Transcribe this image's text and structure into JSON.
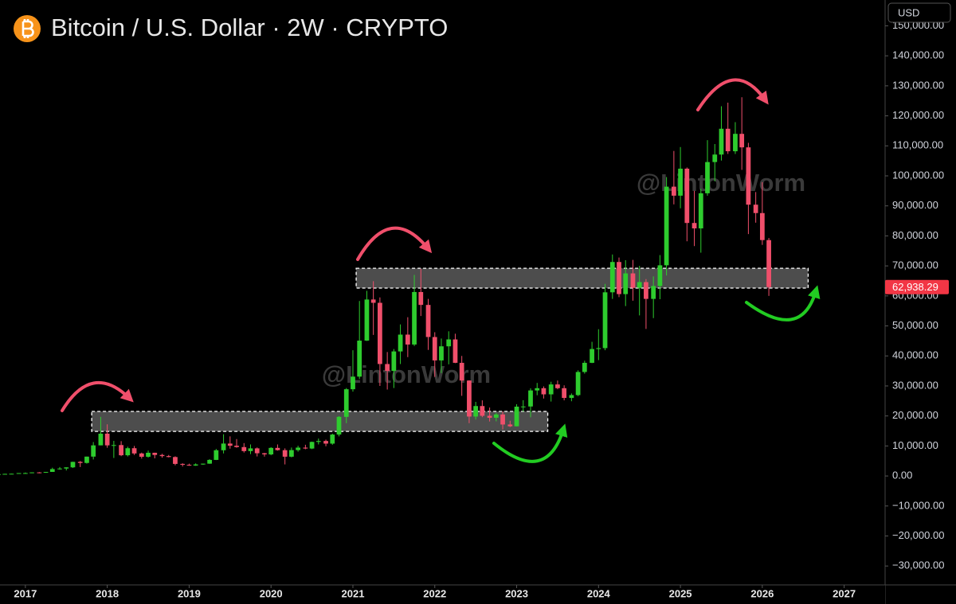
{
  "chart_data": {
    "type": "candlestick",
    "title": "Bitcoin / U.S. Dollar · 2W · CRYPTO",
    "currency": "USD",
    "up_color": "#2ecc2e",
    "down_color": "#f04f6b",
    "x": [
      2016.67,
      2016.75,
      2016.83,
      2016.92,
      2017.0,
      2017.08,
      2017.17,
      2017.25,
      2017.33,
      2017.42,
      2017.5,
      2017.58,
      2017.67,
      2017.75,
      2017.83,
      2017.92,
      2018.0,
      2018.08,
      2018.17,
      2018.25,
      2018.33,
      2018.42,
      2018.5,
      2018.58,
      2018.67,
      2018.75,
      2018.83,
      2018.92,
      2019.0,
      2019.08,
      2019.17,
      2019.25,
      2019.33,
      2019.42,
      2019.5,
      2019.58,
      2019.67,
      2019.75,
      2019.83,
      2019.92,
      2020.0,
      2020.08,
      2020.17,
      2020.25,
      2020.33,
      2020.42,
      2020.5,
      2020.58,
      2020.67,
      2020.75,
      2020.83,
      2020.92,
      2021.0,
      2021.08,
      2021.17,
      2021.25,
      2021.33,
      2021.42,
      2021.5,
      2021.58,
      2021.67,
      2021.75,
      2021.83,
      2021.92,
      2022.0,
      2022.08,
      2022.17,
      2022.25,
      2022.33,
      2022.42,
      2022.5,
      2022.58,
      2022.67,
      2022.75,
      2022.83,
      2022.92,
      2023.0,
      2023.08,
      2023.17,
      2023.25,
      2023.33,
      2023.42,
      2023.5,
      2023.58,
      2023.67,
      2023.75,
      2023.83,
      2023.92,
      2024.0,
      2024.08,
      2024.17,
      2024.25,
      2024.33,
      2024.42,
      2024.5,
      2024.58,
      2024.67,
      2024.75,
      2024.83,
      2024.92,
      2025.0,
      2025.08,
      2025.17,
      2025.25,
      2025.33,
      2025.42,
      2025.5,
      2025.58,
      2025.67,
      2025.75,
      2025.83,
      2025.92,
      2026.0,
      2026.08
    ],
    "open": [
      575,
      608,
      700,
      745,
      960,
      965,
      1190,
      1080,
      1350,
      2300,
      2480,
      2870,
      4700,
      4340,
      6450,
      10200,
      14100,
      10200,
      10300,
      6900,
      9250,
      7500,
      6400,
      7730,
      7000,
      6620,
      6310,
      4020,
      3740,
      3460,
      3850,
      4100,
      5350,
      8570,
      10800,
      10080,
      9630,
      8290,
      9200,
      7570,
      7190,
      9350,
      8600,
      6420,
      8620,
      9450,
      9140,
      11350,
      11660,
      10780,
      13800,
      19700,
      28900,
      33100,
      45100,
      58800,
      57700,
      37300,
      35000,
      41500,
      47100,
      43800,
      61300,
      57000,
      46300,
      38500,
      43200,
      45500,
      37700,
      31800,
      19800,
      23300,
      20050,
      19400,
      20500,
      17150,
      16550,
      23100,
      23150,
      28500,
      29250,
      27200,
      30500,
      29250,
      26000,
      26950,
      34650,
      37700,
      42300,
      42600,
      61200,
      71300,
      60600,
      67500,
      62700,
      64600,
      59000,
      63300,
      70200,
      96400,
      93400,
      102400,
      84300,
      82500,
      94200,
      104600,
      107100,
      115700,
      108200,
      114000,
      109500,
      90400,
      87600,
      78600
    ],
    "high": [
      610,
      740,
      755,
      970,
      1150,
      1200,
      1290,
      1350,
      2760,
      2980,
      2900,
      4750,
      4980,
      6450,
      11300,
      19700,
      17200,
      11700,
      11600,
      9750,
      10000,
      7780,
      8450,
      7760,
      7400,
      7000,
      6550,
      4230,
      4100,
      4200,
      4130,
      5600,
      9000,
      13900,
      13200,
      12300,
      10950,
      10500,
      9500,
      7700,
      9600,
      10500,
      9200,
      9470,
      10070,
      10400,
      11450,
      12470,
      12100,
      14100,
      19900,
      29300,
      41900,
      58300,
      61700,
      64900,
      59500,
      41300,
      42300,
      50500,
      52900,
      67000,
      69000,
      59000,
      47900,
      45800,
      48200,
      47400,
      40000,
      31900,
      24700,
      25200,
      22800,
      21000,
      21500,
      18400,
      23900,
      25250,
      29200,
      31000,
      29850,
      31400,
      31800,
      30200,
      27500,
      35200,
      38400,
      44700,
      48900,
      64000,
      73800,
      72800,
      71900,
      72000,
      70000,
      65600,
      66500,
      73600,
      99600,
      108300,
      109600,
      102800,
      95000,
      95700,
      111900,
      110600,
      123200,
      124400,
      117900,
      126200,
      111000,
      94600,
      97900,
      79300
    ],
    "low": [
      570,
      605,
      690,
      740,
      780,
      920,
      890,
      1060,
      1350,
      2100,
      1830,
      2670,
      2970,
      4110,
      5500,
      10200,
      9400,
      6000,
      6600,
      6500,
      7000,
      5780,
      6100,
      5880,
      6100,
      6200,
      3550,
      3150,
      3400,
      3380,
      3700,
      4050,
      5300,
      7500,
      9100,
      9400,
      7800,
      7300,
      6500,
      6450,
      6900,
      8450,
      3850,
      6200,
      8100,
      8900,
      8950,
      10500,
      9900,
      10400,
      13200,
      17600,
      28100,
      32300,
      45000,
      47000,
      30000,
      28800,
      29300,
      37300,
      39600,
      43300,
      53300,
      42000,
      33000,
      34300,
      37200,
      37600,
      26700,
      17600,
      18800,
      19600,
      18150,
      18200,
      15500,
      16300,
      16500,
      21400,
      19550,
      26900,
      25800,
      24800,
      28900,
      25200,
      24900,
      26600,
      34100,
      37600,
      38600,
      41900,
      59000,
      59600,
      56600,
      58400,
      53500,
      49000,
      52600,
      58900,
      66800,
      90500,
      89200,
      78200,
      76600,
      74400,
      93400,
      98200,
      105100,
      107300,
      107300,
      102000,
      80600,
      84400,
      77000,
      60000
    ],
    "close": [
      608,
      700,
      745,
      960,
      965,
      1190,
      1080,
      1350,
      2300,
      2480,
      2870,
      4700,
      4340,
      6450,
      10200,
      14100,
      10200,
      10300,
      6900,
      9250,
      7500,
      6400,
      7730,
      7000,
      6620,
      6310,
      4020,
      3740,
      3460,
      3850,
      4100,
      5350,
      8570,
      10800,
      10080,
      9630,
      8290,
      9200,
      7570,
      7190,
      9350,
      8600,
      6420,
      8620,
      9450,
      9140,
      11350,
      11660,
      10780,
      13800,
      19700,
      28900,
      33100,
      45100,
      58800,
      57700,
      37300,
      35000,
      41500,
      47100,
      43800,
      61300,
      57000,
      46300,
      38500,
      43200,
      45500,
      37700,
      31800,
      19800,
      23300,
      20050,
      19400,
      20500,
      17150,
      16550,
      23100,
      23150,
      28500,
      29250,
      27200,
      30500,
      29250,
      26000,
      26950,
      34650,
      37700,
      42300,
      42600,
      61200,
      71300,
      60600,
      67500,
      62700,
      64600,
      59000,
      63300,
      70200,
      96400,
      93400,
      102400,
      84300,
      82500,
      94200,
      104600,
      107100,
      115700,
      108200,
      114000,
      109500,
      90400,
      87600,
      78600,
      62938.29
    ],
    "xlim": [
      2016.69,
      2027.49
    ],
    "xticks": [
      2017,
      2018,
      2019,
      2020,
      2021,
      2022,
      2023,
      2024,
      2025,
      2026,
      2027
    ],
    "ylim": [
      -36300,
      158600
    ],
    "yticks": [
      {
        "value": -30000,
        "label": "−30,000.00"
      },
      {
        "value": -20000,
        "label": "−20,000.00"
      },
      {
        "value": -10000,
        "label": "−10,000.00"
      },
      {
        "value": 0,
        "label": "0.00"
      },
      {
        "value": 10000,
        "label": "10,000.00"
      },
      {
        "value": 20000,
        "label": "20,000.00"
      },
      {
        "value": 30000,
        "label": "30,000.00"
      },
      {
        "value": 40000,
        "label": "40,000.00"
      },
      {
        "value": 50000,
        "label": "50,000.00"
      },
      {
        "value": 60000,
        "label": "60,000.00"
      },
      {
        "value": 70000,
        "label": "70,000.00"
      },
      {
        "value": 80000,
        "label": "80,000.00"
      },
      {
        "value": 90000,
        "label": "90,000.00"
      },
      {
        "value": 100000,
        "label": "100,000.00"
      },
      {
        "value": 110000,
        "label": "110,000.00"
      },
      {
        "value": 120000,
        "label": "120,000.00"
      },
      {
        "value": 130000,
        "label": "130,000.00"
      },
      {
        "value": 140000,
        "label": "140,000.00"
      },
      {
        "value": 150000,
        "label": "150,000.00"
      }
    ],
    "last_price": {
      "value": 62938.29,
      "label": "62,938.29"
    },
    "zones": [
      {
        "x": [
          2017.81,
          2023.38
        ],
        "y": [
          14850,
          21500
        ]
      },
      {
        "x": [
          2021.04,
          2026.56
        ],
        "y": [
          62600,
          69200
        ]
      }
    ],
    "watermarks": [
      "@LintonWorm",
      "@LintonWorm"
    ]
  }
}
